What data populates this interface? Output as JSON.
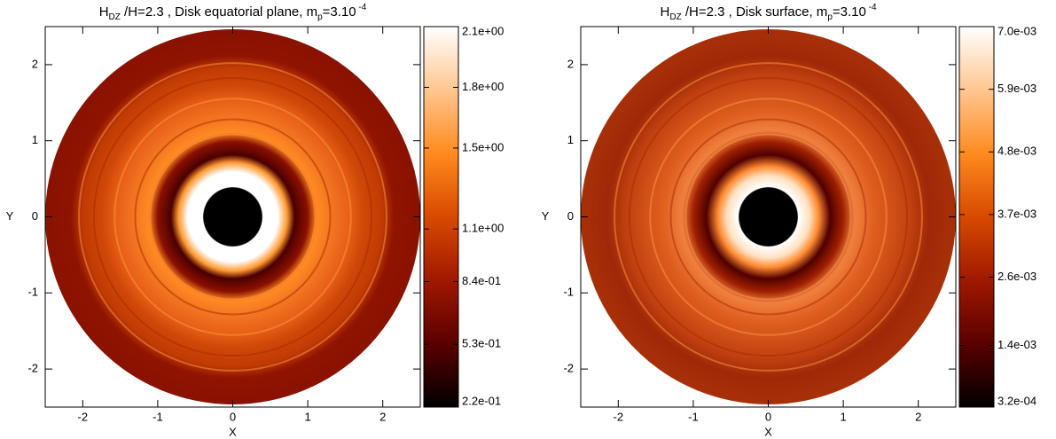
{
  "chart_data": [
    {
      "type": "disk-map",
      "title": [
        "H",
        "DZ",
        " /H=2.3 , Disk equatorial plane, m",
        "p",
        "=3.10",
        " -4"
      ],
      "x_label": "X",
      "y_label": "Y",
      "xlim": [
        -2.5,
        2.5
      ],
      "ylim": [
        -2.5,
        2.5
      ],
      "xticks": [
        -2,
        -1,
        0,
        1,
        2
      ],
      "yticks": [
        -2,
        -1,
        0,
        1,
        2
      ],
      "colormap": [
        "#000000",
        "#5a0000",
        "#a01800",
        "#d84a00",
        "#ff8a1e",
        "#ffc690",
        "#ffffff"
      ],
      "clim": [
        0.22,
        2.1
      ],
      "cticks": [
        {
          "value": 0.22,
          "label": "2.2e-01"
        },
        {
          "value": 0.53,
          "label": "5.3e-01"
        },
        {
          "value": 0.84,
          "label": "8.4e-01"
        },
        {
          "value": 1.1,
          "label": "1.1e+00"
        },
        {
          "value": 1.5,
          "label": "1.5e+00"
        },
        {
          "value": 1.8,
          "label": "1.8e+00"
        },
        {
          "value": 2.1,
          "label": "2.1e+00"
        }
      ]
    },
    {
      "type": "disk-map",
      "title": [
        "H",
        "DZ",
        " /H=2.3 , Disk surface, m",
        "p",
        "=3.10",
        " -4"
      ],
      "x_label": "X",
      "y_label": "Y",
      "xlim": [
        -2.5,
        2.5
      ],
      "ylim": [
        -2.5,
        2.5
      ],
      "xticks": [
        -2,
        -1,
        0,
        1,
        2
      ],
      "yticks": [
        -2,
        -1,
        0,
        1,
        2
      ],
      "colormap": [
        "#000000",
        "#5a0000",
        "#a01800",
        "#d84a00",
        "#ff8a1e",
        "#ffc690",
        "#ffffff"
      ],
      "clim": [
        0.00032,
        0.007
      ],
      "cticks": [
        {
          "value": 0.00032,
          "label": "3.2e-04"
        },
        {
          "value": 0.0014,
          "label": "1.4e-03"
        },
        {
          "value": 0.0026,
          "label": "2.6e-03"
        },
        {
          "value": 0.0037,
          "label": "3.7e-03"
        },
        {
          "value": 0.0048,
          "label": "4.8e-03"
        },
        {
          "value": 0.0059,
          "label": "5.9e-03"
        },
        {
          "value": 0.007,
          "label": "7.0e-03"
        }
      ]
    }
  ]
}
